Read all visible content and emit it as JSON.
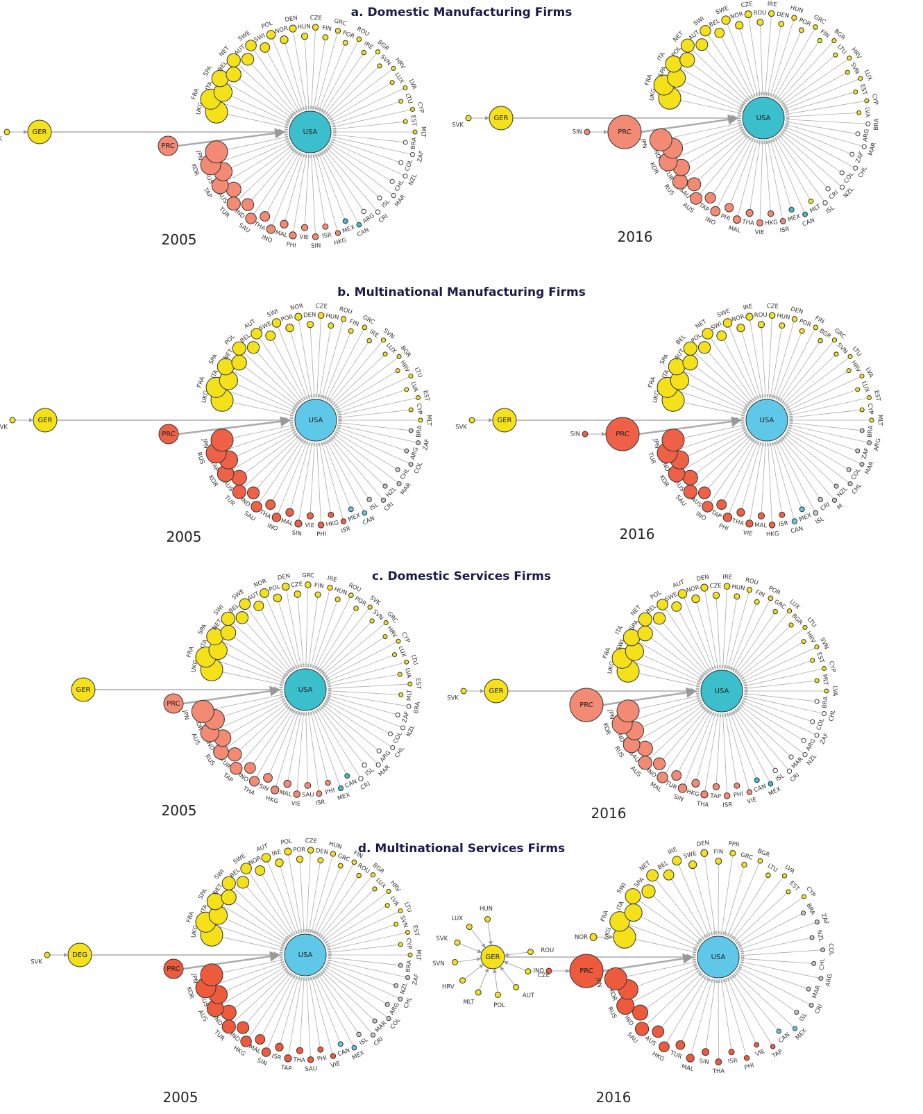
{
  "panels": [
    {
      "title": "a. Domestic Manufacturing Firms",
      "colors": {
        "europe": "#f4e11a",
        "asia": "#f28a74",
        "americas": "#3bbfcc",
        "other": "#ffffff",
        "hub": "#3bbfcc"
      },
      "diagrams": [
        {
          "year": "2005",
          "hub": "USA",
          "satellites": [
            {
              "label": "GER",
              "group": "europe",
              "sources": [
                "SVK"
              ]
            },
            {
              "label": "PRC",
              "group": "asia",
              "sources": []
            }
          ],
          "ring": [
            {
              "group": "europe",
              "labels": [
                "UKG",
                "FRA",
                "ITA",
                "SPA",
                "BEL",
                "NET",
                "AUT",
                "SWE",
                "SWI",
                "POL",
                "NOR",
                "DEN",
                "HUN",
                "CZE",
                "FIN",
                "GRC",
                "POR",
                "ROU",
                "IRE",
                "BGR",
                "SVN",
                "HRV",
                "LUX",
                "LVA",
                "LTU",
                "CYP",
                "EST",
                "MLT"
              ]
            },
            {
              "group": "other",
              "labels": [
                "BRA",
                "ZAF",
                "COL",
                "NZL",
                "CHL",
                "MAR",
                "ISL",
                "CRI",
                "ARG"
              ]
            },
            {
              "group": "americas",
              "labels": [
                "CAN",
                "MEX"
              ]
            },
            {
              "group": "asia",
              "labels": [
                "HKG",
                "ISR",
                "SIN",
                "VIE",
                "PHI",
                "MAL",
                "INO",
                "THA",
                "SAU",
                "IND",
                "TUR",
                "AUS",
                "TAP",
                "RUS",
                "KOR",
                "JPN"
              ]
            }
          ]
        },
        {
          "year": "2016",
          "hub": "USA",
          "satellites": [
            {
              "label": "GER",
              "group": "europe",
              "sources": [
                "SVK"
              ]
            },
            {
              "label": "PRC",
              "group": "asia",
              "sources": [
                "SIN"
              ]
            }
          ],
          "ring": [
            {
              "group": "europe",
              "labels": [
                "UKG",
                "FRA",
                "SPA",
                "ITA",
                "POL",
                "NET",
                "AUT",
                "SWI",
                "BEL",
                "SWE",
                "NOR",
                "CZE",
                "ROU",
                "IRE",
                "DEN",
                "HUN",
                "POR",
                "GRC",
                "FIN",
                "BGR",
                "LTU",
                "HRV",
                "SVN",
                "LUX",
                "EST",
                "CYP",
                "LVA"
              ]
            },
            {
              "group": "other",
              "labels": [
                "BRA",
                "ARG",
                "MAR",
                "ZAF",
                "CHL",
                "COL",
                "NZL",
                "CRI",
                "ISL"
              ]
            },
            {
              "group": "europe",
              "labels": [
                "MLT"
              ]
            },
            {
              "group": "americas",
              "labels": [
                "CAN",
                "MEX"
              ]
            },
            {
              "group": "asia",
              "labels": [
                "ISR",
                "HKG",
                "VIE",
                "THA",
                "MAL",
                "PHI",
                "INO",
                "TAP",
                "AUS",
                "SAU",
                "RUS",
                "TUR",
                "KOR",
                "IND",
                "JPN"
              ]
            }
          ]
        }
      ]
    },
    {
      "title": "b. Multinational Manufacturing Firms",
      "colors": {
        "europe": "#f4e11a",
        "asia": "#ef6146",
        "americas": "#5fc8e8",
        "other": "#c8c8c8",
        "hub": "#5fc8e8"
      },
      "diagrams": [
        {
          "year": "2005",
          "hub": "USA",
          "satellites": [
            {
              "label": "GER",
              "group": "europe",
              "sources": [
                "SVK"
              ]
            },
            {
              "label": "PRC",
              "group": "asia",
              "sources": []
            }
          ],
          "ring": [
            {
              "group": "europe",
              "labels": [
                "UKG",
                "FRA",
                "ITA",
                "SPA",
                "NET",
                "POL",
                "BEL",
                "AUT",
                "SWE",
                "SWI",
                "POR",
                "NOR",
                "DEN",
                "CZE",
                "HUN",
                "ROU",
                "FIN",
                "GRC",
                "IRE",
                "SVN",
                "LUX",
                "BGR",
                "HRV",
                "LTU",
                "LVA",
                "EST",
                "CYP",
                "MLT"
              ]
            },
            {
              "group": "other",
              "labels": [
                "BRA",
                "ZAF",
                "ARG",
                "COL",
                "CHL",
                "MAR",
                "NZL",
                "CRI",
                "ISL"
              ]
            },
            {
              "group": "americas",
              "labels": [
                "CAN",
                "MEX"
              ]
            },
            {
              "group": "asia",
              "labels": [
                "ISR",
                "HKG",
                "PHI",
                "VIE",
                "SIN",
                "MAL",
                "INO",
                "THA",
                "SAU",
                "IND",
                "TUR",
                "AUS",
                "KOR",
                "TAP",
                "RUS",
                "JPN"
              ]
            }
          ]
        },
        {
          "year": "2016",
          "hub": "USA",
          "satellites": [
            {
              "label": "GER",
              "group": "europe",
              "sources": [
                "SVK"
              ]
            },
            {
              "label": "PRC",
              "group": "asia",
              "sources": [
                "SIN"
              ]
            }
          ],
          "ring": [
            {
              "group": "europe",
              "labels": [
                "UKG",
                "FRA",
                "ITA",
                "SPA",
                "AUT",
                "BEL",
                "POL",
                "NET",
                "SWI",
                "SWE",
                "NOR",
                "IRE",
                "ROU",
                "CZE",
                "HUN",
                "DEN",
                "POR",
                "FIN",
                "BGR",
                "GRC",
                "SVN",
                "LTU",
                "HRV",
                "LVA",
                "LUX",
                "EST",
                "CYP",
                "MLT"
              ]
            },
            {
              "group": "other",
              "labels": [
                "BRA",
                "ARG",
                "ZAF",
                "MAR",
                "COL",
                "CHL",
                "NZL",
                "M",
                "CRI",
                "ISL"
              ]
            },
            {
              "group": "americas",
              "labels": [
                "MEX",
                "CAN"
              ]
            },
            {
              "group": "asia",
              "labels": [
                "ISR",
                "HKG",
                "MAL",
                "VIE",
                "THA",
                "PHI",
                "TAP",
                "INO",
                "AUS",
                "SAU",
                "RUS",
                "KOR",
                "IND",
                "TUR",
                "JPN"
              ]
            }
          ]
        }
      ]
    },
    {
      "title": "c. Domestic Services Firms",
      "colors": {
        "europe": "#f4e11a",
        "asia": "#f28a74",
        "americas": "#3bbfcc",
        "other": "#ffffff",
        "hub": "#3bbfcc"
      },
      "diagrams": [
        {
          "year": "2005",
          "hub": "USA",
          "satellites": [
            {
              "label": "GER",
              "group": "europe",
              "sources": []
            },
            {
              "label": "PRC",
              "group": "asia",
              "sources": []
            }
          ],
          "ring": [
            {
              "group": "europe",
              "labels": [
                "UKG",
                "FRA",
                "ITA",
                "SPA",
                "NET",
                "SWI",
                "BEL",
                "SWE",
                "AUT",
                "NOR",
                "POL",
                "DEN",
                "CZE",
                "GRC",
                "FIN",
                "IRE",
                "HUN",
                "ROU",
                "POR",
                "SVK",
                "SVN",
                "GRC",
                "HRV",
                "CYP",
                "LUX",
                "LTU",
                "LVA",
                "EST",
                "MLT"
              ]
            },
            {
              "group": "other",
              "labels": [
                "BRA",
                "ZAF",
                "NZL",
                "COL",
                "CHL",
                "ARG",
                "MAR",
                "ISL",
                "CRI"
              ]
            },
            {
              "group": "americas",
              "labels": [
                "CAN",
                "MEX"
              ]
            },
            {
              "group": "asia",
              "labels": [
                "PHI",
                "ISR",
                "SAU",
                "VIE",
                "MAL",
                "HKG",
                "SIN",
                "THA",
                "INO",
                "TAP",
                "TUR",
                "RUS",
                "IND",
                "AUS",
                "KOR",
                "JPN"
              ]
            }
          ]
        },
        {
          "year": "2016",
          "hub": "USA",
          "satellites": [
            {
              "label": "GER",
              "group": "europe",
              "sources": [
                "SVK"
              ]
            },
            {
              "label": "PRC",
              "group": "asia",
              "sources": []
            }
          ],
          "ring": [
            {
              "group": "europe",
              "labels": [
                "UKG",
                "FRA",
                "SWI",
                "ITA",
                "SPA",
                "NET",
                "BEL",
                "POL",
                "SWE",
                "AUT",
                "NOR",
                "DEN",
                "CZE",
                "IRE",
                "HUN",
                "ROU",
                "FIN",
                "POR",
                "GRC",
                "LUX",
                "BGR",
                "LTU",
                "HRV",
                "SVN",
                "EST",
                "CYP",
                "MLT",
                "LVA"
              ]
            },
            {
              "group": "other",
              "labels": [
                "BRA",
                "CHL",
                "COL",
                "ZAF",
                "ARG",
                "NZL",
                "MAR",
                "CRI",
                "ISL"
              ]
            },
            {
              "group": "americas",
              "labels": [
                "MEX",
                "CAN"
              ]
            },
            {
              "group": "asia",
              "labels": [
                "VIE",
                "PHI",
                "ISR",
                "TAP",
                "THA",
                "HKG",
                "SIN",
                "TUR",
                "MAL",
                "INO",
                "AUS",
                "SAU",
                "RUS",
                "IND",
                "KOR",
                "JPN"
              ]
            }
          ]
        }
      ]
    },
    {
      "title": "d. Multinational Services Firms",
      "colors": {
        "europe": "#f4e11a",
        "asia": "#ee5a3c",
        "americas": "#5fc8e8",
        "other": "#c8c8c8",
        "hub": "#5fc8e8"
      },
      "diagrams": [
        {
          "year": "2005",
          "hub": "USA",
          "satellites": [
            {
              "label": "DEG",
              "group": "europe",
              "sources": [
                "SVK"
              ]
            },
            {
              "label": "PRC",
              "group": "asia",
              "sources": []
            }
          ],
          "ring": [
            {
              "group": "europe",
              "labels": [
                "UKG",
                "FRA",
                "ITA",
                "SPA",
                "NET",
                "SWI",
                "BEL",
                "SWE",
                "NOR",
                "AUT",
                "IRE",
                "POL",
                "POR",
                "CZE",
                "DEN",
                "HUN",
                "GRC",
                "FIN",
                "ROU",
                "BGR",
                "LUX",
                "HRV",
                "LVA",
                "LTU",
                "SVN",
                "EST",
                "CYP",
                "MLT"
              ]
            },
            {
              "group": "other",
              "labels": [
                "BRA",
                "ZAF",
                "NZL",
                "CHL",
                "ARG",
                "COL",
                "MAR",
                "CRI",
                "ISL"
              ]
            },
            {
              "group": "americas",
              "labels": [
                "MEX",
                "CAN"
              ]
            },
            {
              "group": "asia",
              "labels": [
                "VIE",
                "PHI",
                "SAU",
                "THA",
                "TAP",
                "ISR",
                "SIN",
                "MAL",
                "HKG",
                "INO",
                "TUR",
                "IND",
                "AUS",
                "RUS",
                "KOR",
                "JPN"
              ]
            }
          ]
        },
        {
          "year": "2016",
          "hub": "USA",
          "satellites": [
            {
              "label": "GER",
              "group": "europe",
              "sources": [
                "ROU",
                "CZE",
                "AUT",
                "POL",
                "MLT",
                "HRV",
                "SVN",
                "SVK",
                "LUX",
                "HUN"
              ]
            },
            {
              "label": "PRC",
              "group": "asia",
              "sources": [
                "INO"
              ]
            }
          ],
          "feeders": [
            {
              "label": "NOR",
              "to": "UKG"
            }
          ],
          "ring": [
            {
              "group": "europe",
              "labels": [
                "UKG",
                "FRA",
                "ITA",
                "SWI",
                "SPA",
                "NET",
                "BEL",
                "IRE",
                "SWE",
                "DEN",
                "FIN",
                "PPR",
                "GRC",
                "BGR",
                "LTU",
                "LVA",
                "EST",
                "CYP"
              ]
            },
            {
              "group": "other",
              "labels": [
                "BRA",
                "ZAF",
                "NZL",
                "COL",
                "CHL",
                "ARG",
                "MAR",
                "CRI",
                "ISL"
              ]
            },
            {
              "group": "americas",
              "labels": [
                "MEX",
                "CAN"
              ]
            },
            {
              "group": "asia",
              "labels": [
                "TAP",
                "VIE",
                "PHI",
                "ISR",
                "THA",
                "SIN",
                "MAL",
                "TUR",
                "HKG",
                "AUS",
                "SAU",
                "IND",
                "RUS",
                "KOR",
                "JPN"
              ]
            }
          ]
        }
      ]
    }
  ]
}
